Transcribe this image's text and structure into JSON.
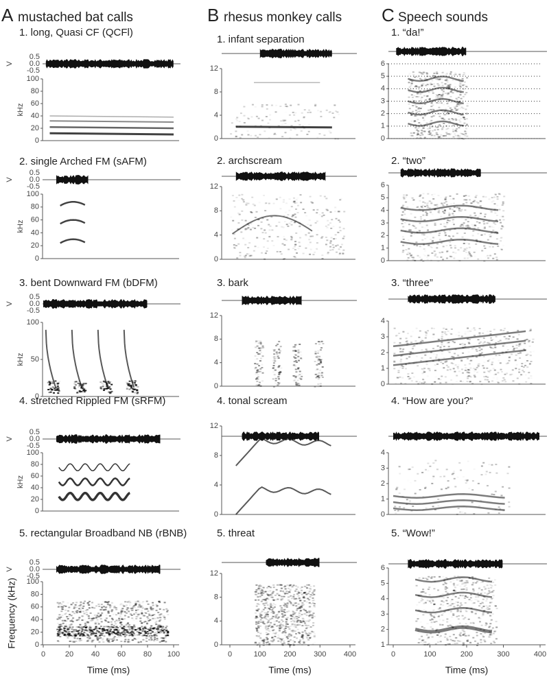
{
  "columns": [
    {
      "letter": "A",
      "title": "mustached bat calls",
      "xticks": [
        "0",
        "20",
        "40",
        "60",
        "80",
        "100"
      ],
      "xlabel": "Time (ms)",
      "panels": [
        {
          "title": "1. long, Quasi CF (QCFl)",
          "wave_label": "V",
          "wave_ticks": [
            "0.5",
            "0.0",
            "-0.5"
          ],
          "ylabel": "kHz",
          "yticks": [
            "100",
            "80",
            "60",
            "40",
            "20",
            "0"
          ]
        },
        {
          "title": "2. single Arched FM (sAFM)",
          "wave_label": "V",
          "wave_ticks": [
            "0.5",
            "0.0",
            "-0.5"
          ],
          "ylabel": "kHz",
          "yticks": [
            "100",
            "80",
            "60",
            "40",
            "20",
            "0"
          ]
        },
        {
          "title": "3. bent Downward FM (bDFM)",
          "wave_label": "V",
          "wave_ticks": [
            "0.5",
            "0.0",
            "-0.5"
          ],
          "ylabel": "kHz",
          "yticks": [
            "100",
            "50",
            "0"
          ]
        },
        {
          "title": "4. stretched Rippled FM (sRFM)",
          "wave_label": "V",
          "wave_ticks": [
            "0.5",
            "0.0",
            "-0.5"
          ],
          "ylabel": "kHz",
          "yticks": [
            "100",
            "80",
            "60",
            "40",
            "20",
            "0"
          ]
        },
        {
          "title": "5. rectangular Broadband NB (rBNB)",
          "wave_label": "V",
          "wave_ticks": [
            "0.5",
            "0.0",
            "-0.5"
          ],
          "ylabel": "Frequency (kHz)",
          "yticks": [
            "100",
            "80",
            "60",
            "40",
            "20",
            "0"
          ]
        }
      ]
    },
    {
      "letter": "B",
      "title": "rhesus monkey calls",
      "xticks": [
        "0",
        "100",
        "200",
        "300",
        "400"
      ],
      "xlabel": "Time (ms)",
      "panels": [
        {
          "title": "1. infant separation",
          "yticks": [
            "12",
            "8",
            "4",
            "0"
          ]
        },
        {
          "title": "2. archscream",
          "yticks": [
            "12",
            "8",
            "4",
            "0"
          ]
        },
        {
          "title": "3. bark",
          "yticks": [
            "12",
            "8",
            "4",
            "0"
          ]
        },
        {
          "title": "4. tonal scream",
          "yticks": [
            "12",
            "8",
            "4",
            "0"
          ]
        },
        {
          "title": "5. threat",
          "yticks": [
            "12",
            "8",
            "4",
            "0"
          ]
        }
      ]
    },
    {
      "letter": "C",
      "title": "Speech sounds",
      "xticks": [
        "0",
        "100",
        "200",
        "300",
        "400"
      ],
      "xlabel": "Time (ms)",
      "panels": [
        {
          "title": "1. “da!”",
          "yticks": [
            "6",
            "5",
            "4",
            "3",
            "2",
            "1",
            "0"
          ]
        },
        {
          "title": "2. “two”",
          "yticks": [
            "6",
            "5",
            "4",
            "3",
            "2",
            "1",
            "0"
          ]
        },
        {
          "title": "3. “three”",
          "yticks": [
            "4",
            "3",
            "2",
            "1",
            "0"
          ]
        },
        {
          "title": "4. “How are you?“",
          "yticks": [
            "4",
            "3",
            "2",
            "1",
            "0"
          ]
        },
        {
          "title": "5. “Wow!”",
          "yticks": [
            "6",
            "5",
            "4",
            "3",
            "2",
            "1"
          ]
        }
      ]
    }
  ]
}
